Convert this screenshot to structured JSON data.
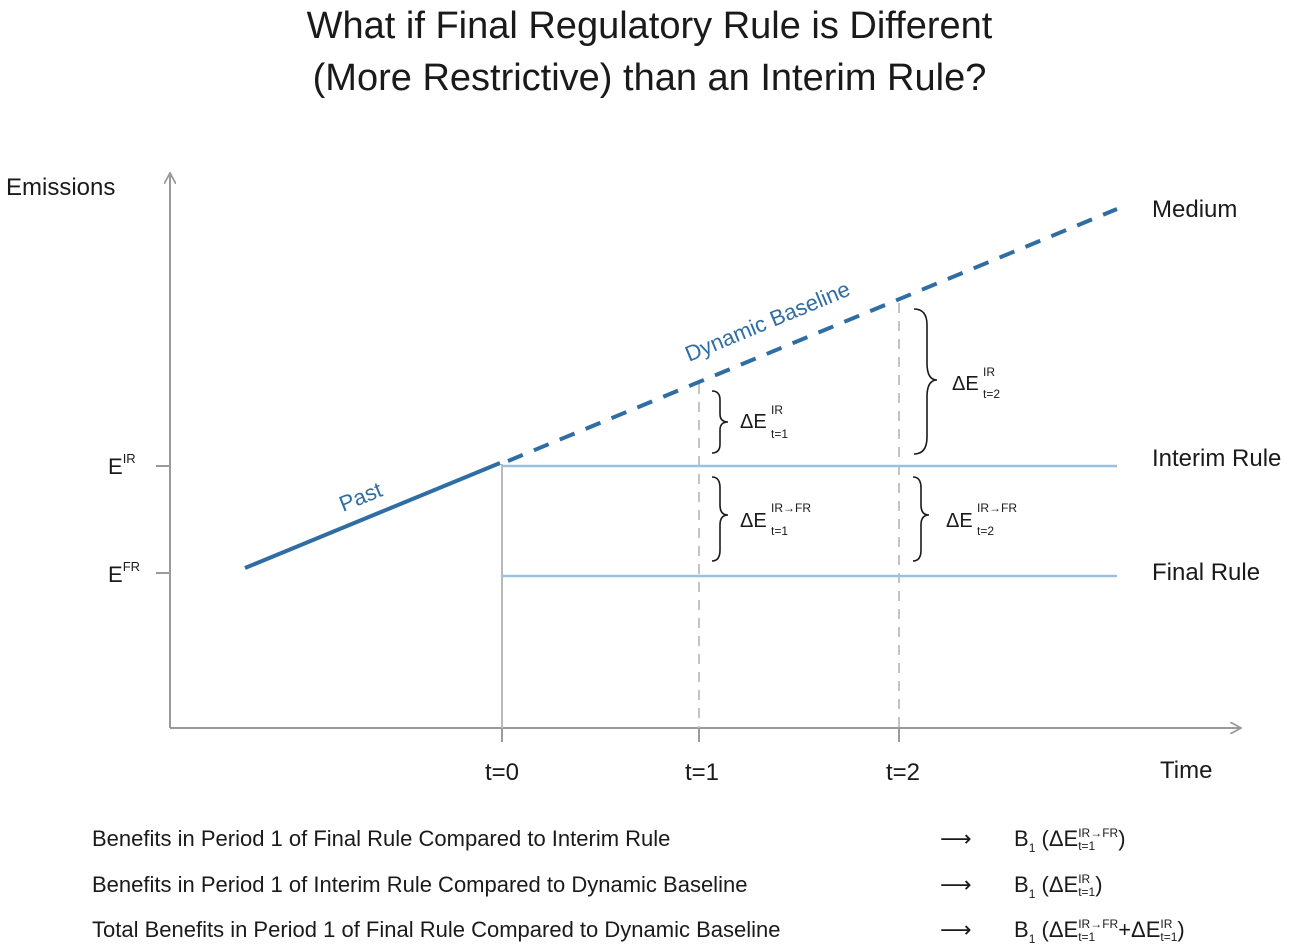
{
  "title": {
    "line1": "What if Final Regulatory Rule is Different",
    "line2": "(More Restrictive) than an Interim Rule?"
  },
  "axes": {
    "y_label": "Emissions",
    "x_label": "Time",
    "x_ticks": [
      "t=0",
      "t=1",
      "t=2"
    ],
    "y_ticks": [
      {
        "base": "E",
        "sup": "IR"
      },
      {
        "base": "E",
        "sup": "FR"
      }
    ]
  },
  "lines": {
    "past": "Past",
    "dynamic_baseline": "Dynamic Baseline",
    "medium": "Medium",
    "interim_rule": "Interim Rule",
    "final_rule": "Final Rule"
  },
  "braces": {
    "d1_ir": {
      "delta": "ΔE",
      "sup": "IR",
      "sub": "t=1"
    },
    "d2_ir": {
      "delta": "ΔE",
      "sup": "IR",
      "sub": "t=2"
    },
    "d1_irfr": {
      "delta": "ΔE",
      "sup": "IR→FR",
      "sub": "t=1"
    },
    "d2_irfr": {
      "delta": "ΔE",
      "sup": "IR→FR",
      "sub": "t=2"
    }
  },
  "legend": [
    {
      "text": "Benefits in Period 1 of Final Rule Compared to Interim Rule",
      "arrow": "⟶",
      "formula": {
        "b": "B",
        "bsub": "1",
        "open": " (ΔE",
        "sup1": "IR→FR",
        "sub1": "t=1",
        "mid": "",
        "sup2": "",
        "sub2": "",
        "close": ")"
      }
    },
    {
      "text": "Benefits in Period 1 of Interim Rule Compared to Dynamic Baseline",
      "arrow": "⟶",
      "formula": {
        "b": "B",
        "bsub": "1",
        "open": " (ΔE",
        "sup1": "IR",
        "sub1": "t=1",
        "mid": "",
        "sup2": "",
        "sub2": "",
        "close": ")"
      }
    },
    {
      "text": "Total Benefits in Period 1 of Final Rule Compared to Dynamic Baseline",
      "arrow": "⟶",
      "formula": {
        "b": "B",
        "bsub": "1",
        "open": " (ΔE",
        "sup1": "IR→FR",
        "sub1": "t=1",
        "mid": "+ΔE",
        "sup2": "IR",
        "sub2": "t=1",
        "close": ")"
      }
    }
  ],
  "colors": {
    "baseline_blue": "#2f6da3",
    "rule_light_blue": "#9cc1df",
    "axis_gray": "#9a9a9a",
    "guide_gray": "#c4c4c4"
  }
}
